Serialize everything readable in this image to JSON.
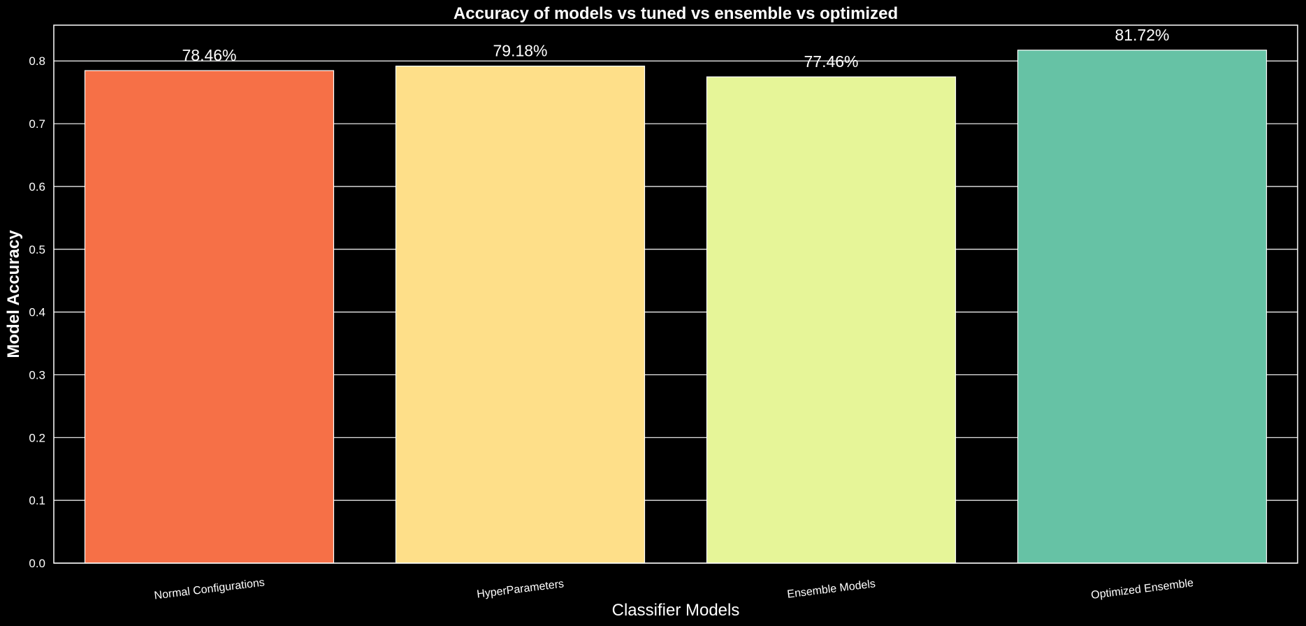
{
  "chart_data": {
    "type": "bar",
    "title": "Accuracy of models vs tuned vs ensemble vs optimized",
    "xlabel": "Classifier Models",
    "ylabel": "Model Accuracy",
    "categories": [
      "Normal Configurations",
      "HyperParameters",
      "Ensemble Models",
      "Optimized Ensemble"
    ],
    "values": [
      0.7846,
      0.7918,
      0.7746,
      0.8172
    ],
    "data_labels": [
      "78.46%",
      "79.18%",
      "77.46%",
      "81.72%"
    ],
    "colors": [
      "#f67047",
      "#fedf89",
      "#e6f598",
      "#66c2a5"
    ],
    "ylim": [
      0,
      0.857
    ],
    "yticks": [
      0.0,
      0.1,
      0.2,
      0.3,
      0.4,
      0.5,
      0.6,
      0.7,
      0.8
    ],
    "ytick_labels": [
      "0.0",
      "0.1",
      "0.2",
      "0.3",
      "0.4",
      "0.5",
      "0.6",
      "0.7",
      "0.8"
    ],
    "grid": true,
    "background": "#000000",
    "foreground": "#ffffff"
  }
}
